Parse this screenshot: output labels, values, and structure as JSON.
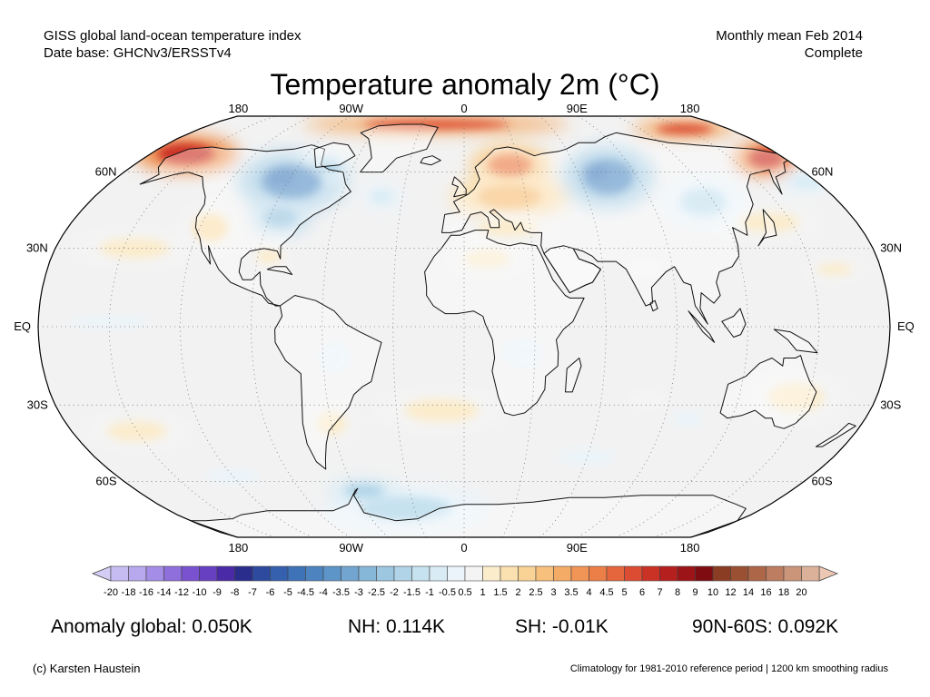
{
  "header": {
    "left_line1": "GISS global land-ocean temperature index",
    "left_line2": "Date base: GHCNv3/ERSSTv4",
    "right_line1": "Monthly mean Feb 2014",
    "right_line2": "Complete"
  },
  "title": "Temperature anomaly 2m (°C)",
  "map": {
    "projection": "Robinson",
    "lon_labels": [
      "180",
      "90W",
      "0",
      "90E",
      "180"
    ],
    "lat_labels_left": [
      "60N",
      "30N",
      "EQ",
      "30S",
      "60S"
    ],
    "lat_labels_right": [
      "60N",
      "30N",
      "EQ",
      "30S",
      "60S"
    ],
    "ocean_color": "#f2f2f2",
    "land_color": "#ffffff",
    "anomaly_regions": [
      {
        "region": "Eastern North America",
        "level": "-4"
      },
      {
        "region": "Central Siberia",
        "level": "-4"
      },
      {
        "region": "Europe / Scandinavia",
        "level": "4"
      },
      {
        "region": "Alaska / Bering Strait",
        "level": "6"
      },
      {
        "region": "Greenland / Arctic",
        "level": "5"
      },
      {
        "region": "Western North America",
        "level": "1.5"
      },
      {
        "region": "Antarctic Peninsula sector",
        "level": "-1.5"
      }
    ]
  },
  "colorbar": {
    "labels": [
      "-20",
      "-18",
      "-16",
      "-14",
      "-12",
      "-10",
      "-9",
      "-8",
      "-7",
      "-6",
      "-5",
      "-4.5",
      "-4",
      "-3.5",
      "-3",
      "-2.5",
      "-2",
      "-1.5",
      "-1",
      "-0.5",
      "0.5",
      "1",
      "1.5",
      "2",
      "2.5",
      "3",
      "3.5",
      "4",
      "4.5",
      "5",
      "6",
      "7",
      "8",
      "9",
      "10",
      "12",
      "14",
      "16",
      "18",
      "20"
    ],
    "colors": [
      "#c6bcf2",
      "#b8a8ee",
      "#a48de6",
      "#8f6fdc",
      "#7a52cf",
      "#6640c0",
      "#4a2aa6",
      "#2a2d8c",
      "#2e4a9e",
      "#3560ad",
      "#3e73b8",
      "#4d84c0",
      "#5e95c8",
      "#72a6d0",
      "#86b6d8",
      "#9dc6e0",
      "#b1d4e8",
      "#c6e1ef",
      "#d9ecf5",
      "#eaf4fa",
      "#f4f4f4",
      "#fbeccc",
      "#fbe0b0",
      "#f9d296",
      "#f7c07c",
      "#f4ab66",
      "#f09555",
      "#ec7e48",
      "#e5663d",
      "#dc4c33",
      "#cb3226",
      "#b51f1e",
      "#9c1417",
      "#7e0c10",
      "#8a3d22",
      "#9a5032",
      "#ad6648",
      "#bd7d60",
      "#cb957a",
      "#dbb19a"
    ],
    "under_color": "#d3ccf5",
    "over_color": "#ebc7b4"
  },
  "stats": {
    "global": "Anomaly global: 0.050K",
    "nh": "NH: 0.114K",
    "sh": "SH: -0.01K",
    "polar": "90N-60S: 0.092K"
  },
  "footer": {
    "credit": "(c) Karsten Haustein",
    "note": "Climatology for 1981-2010 reference period | 1200 km smoothing radius"
  }
}
